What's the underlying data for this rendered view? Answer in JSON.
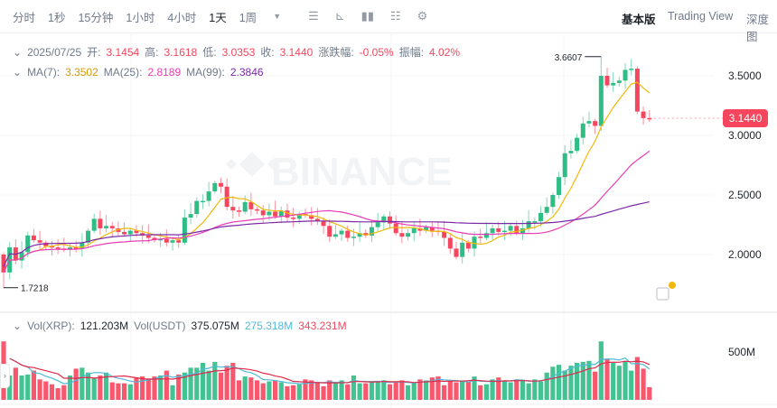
{
  "toolbar": {
    "timeframes": [
      "分时",
      "1秒",
      "15分钟",
      "1小时",
      "4小时",
      "1天",
      "1周"
    ],
    "active": "1天",
    "views": [
      "基本版",
      "Trading View",
      "深度图"
    ]
  },
  "legend": {
    "date": "2025/07/25",
    "open_label": "开:",
    "open": "3.1454",
    "high_label": "高:",
    "high": "3.1618",
    "low_label": "低:",
    "low": "3.0353",
    "close_label": "收:",
    "close": "3.1440",
    "change_label": "涨跌幅:",
    "change": "-0.05%",
    "amp_label": "振幅:",
    "amp": "4.02%",
    "ma7_label": "MA(7):",
    "ma7": "3.3502",
    "ma25_label": "MA(25):",
    "ma25": "2.8189",
    "ma99_label": "MA(99):",
    "ma99": "2.3846"
  },
  "volume": {
    "xrp_label": "Vol(XRP):",
    "xrp": "121.203M",
    "usdt_label": "Vol(USDT)",
    "usdt": "375.075M",
    "ma1": "275.318M",
    "ma2": "343.231M",
    "axis_label": "500M"
  },
  "price_axis": [
    "3.5000",
    "3.0000",
    "2.5000",
    "2.0000"
  ],
  "last_price": "3.1440",
  "max_label": "3.6607",
  "min_label": "1.7218",
  "watermark": "BINANCE",
  "colors": {
    "up": "#2ebd85",
    "down": "#f6465d",
    "ma7": "#f0b90b",
    "ma25": "#e83cb4",
    "ma99": "#7b2aa6"
  },
  "chart_data": {
    "type": "candlestick",
    "ylim": [
      1.6,
      3.75
    ],
    "close": [
      1.85,
      2.06,
      1.95,
      2.02,
      2.16,
      2.12,
      2.1,
      2.07,
      2.06,
      2.05,
      2.04,
      2.06,
      2.05,
      2.1,
      2.2,
      2.3,
      2.22,
      2.24,
      2.22,
      2.19,
      2.17,
      2.2,
      2.18,
      2.16,
      2.14,
      2.12,
      2.13,
      2.1,
      2.12,
      2.1,
      2.31,
      2.34,
      2.45,
      2.45,
      2.53,
      2.6,
      2.57,
      2.4,
      2.37,
      2.36,
      2.44,
      2.38,
      2.37,
      2.33,
      2.36,
      2.32,
      2.37,
      2.31,
      2.3,
      2.34,
      2.33,
      2.3,
      2.28,
      2.24,
      2.15,
      2.17,
      2.2,
      2.14,
      2.15,
      2.18,
      2.16,
      2.23,
      2.27,
      2.32,
      2.26,
      2.18,
      2.15,
      2.18,
      2.22,
      2.2,
      2.23,
      2.2,
      2.19,
      2.14,
      2.05,
      1.98,
      2.1,
      2.05,
      2.15,
      2.14,
      2.18,
      2.22,
      2.19,
      2.2,
      2.24,
      2.18,
      2.22,
      2.28,
      2.28,
      2.35,
      2.4,
      2.5,
      2.65,
      2.85,
      2.87,
      2.98,
      3.1,
      3.12,
      3.08,
      3.5,
      3.42,
      3.44,
      3.46,
      3.55,
      3.56,
      3.2,
      3.1454,
      3.144
    ],
    "first_open": 2.0,
    "max_high": 3.6607,
    "min_low": 1.7218,
    "volume_m": [
      600,
      250,
      330,
      250,
      260,
      300,
      210,
      190,
      160,
      120,
      150,
      250,
      320,
      330,
      280,
      220,
      250,
      280,
      180,
      170,
      170,
      160,
      230,
      240,
      220,
      240,
      250,
      300,
      150,
      260,
      280,
      330,
      330,
      380,
      300,
      390,
      280,
      350,
      380,
      200,
      240,
      230,
      200,
      170,
      190,
      200,
      180,
      140,
      150,
      160,
      210,
      200,
      180,
      140,
      200,
      180,
      200,
      160,
      250,
      170,
      170,
      190,
      180,
      200,
      160,
      180,
      200,
      150,
      180,
      210,
      200,
      230,
      240,
      150,
      190,
      180,
      200,
      190,
      240,
      150,
      160,
      210,
      230,
      200,
      180,
      210,
      200,
      170,
      210,
      190,
      280,
      340,
      360,
      300,
      350,
      380,
      390,
      400,
      290,
      600,
      420,
      380,
      350,
      400,
      300,
      440,
      320,
      130
    ]
  }
}
